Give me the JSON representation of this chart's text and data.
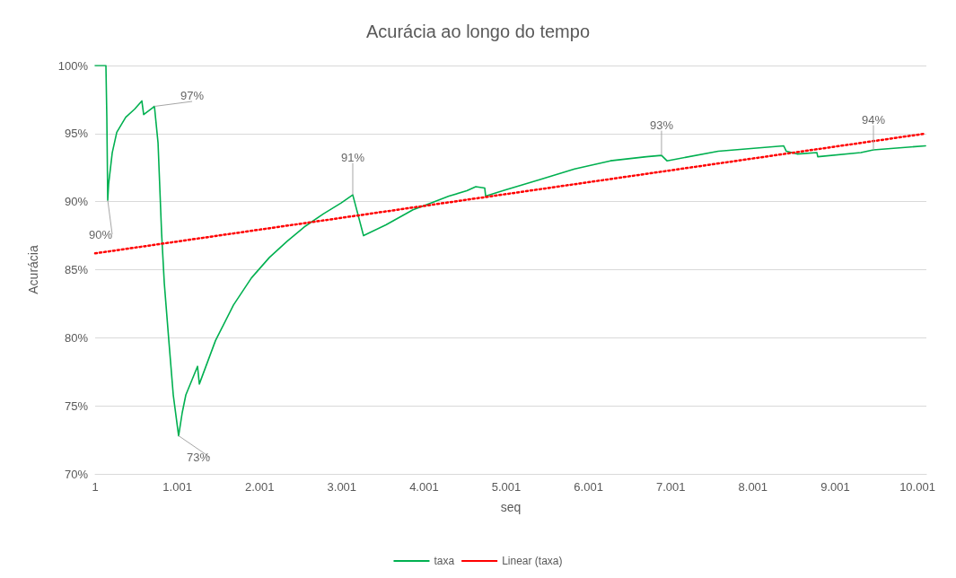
{
  "chart_data": {
    "type": "line",
    "title": "Acurácia ao longo do tempo",
    "xlabel": "seq",
    "ylabel": "Acurácia",
    "xlim": [
      1,
      10110
    ],
    "xticks": [
      {
        "value": 1,
        "label": "1"
      },
      {
        "value": 1001,
        "label": "1.001"
      },
      {
        "value": 2001,
        "label": "2.001"
      },
      {
        "value": 3001,
        "label": "3.001"
      },
      {
        "value": 4001,
        "label": "4.001"
      },
      {
        "value": 5001,
        "label": "5.001"
      },
      {
        "value": 6001,
        "label": "6.001"
      },
      {
        "value": 7001,
        "label": "7.001"
      },
      {
        "value": 8001,
        "label": "8.001"
      },
      {
        "value": 9001,
        "label": "9.001"
      },
      {
        "value": 10001,
        "label": "10.001"
      }
    ],
    "ylim": [
      70,
      100
    ],
    "yticks": [
      {
        "value": 70,
        "label": "70%"
      },
      {
        "value": 75,
        "label": "75%"
      },
      {
        "value": 80,
        "label": "80%"
      },
      {
        "value": 85,
        "label": "85%"
      },
      {
        "value": 90,
        "label": "90%"
      },
      {
        "value": 95,
        "label": "95%"
      },
      {
        "value": 100,
        "label": "100%"
      }
    ],
    "grid": "y",
    "legend": "bottom",
    "marker": "none",
    "series": [
      {
        "name": "taxa",
        "color": "#00b050",
        "line_style": "solid",
        "x": [
          1,
          132,
          143,
          154,
          165,
          209,
          264,
          373,
          482,
          569,
          591,
          700,
          722,
          766,
          809,
          842,
          897,
          951,
          1016,
          1060,
          1104,
          1246,
          1268,
          1465,
          1683,
          1902,
          2120,
          2338,
          2557,
          2775,
          2993,
          3134,
          3265,
          3538,
          3866,
          4084,
          4303,
          4521,
          4630,
          4739,
          4750,
          4958,
          5395,
          5832,
          6268,
          6705,
          6889,
          6955,
          7578,
          8375,
          8407,
          8538,
          8779,
          8789,
          9313,
          9466,
          10100
        ],
        "values": [
          100,
          100,
          96.2,
          90.1,
          91.3,
          93.6,
          95.1,
          96.2,
          96.8,
          97.4,
          96.4,
          96.9,
          97.0,
          94.3,
          87.7,
          84.0,
          79.8,
          75.8,
          72.8,
          74.5,
          75.8,
          77.9,
          76.6,
          79.8,
          82.4,
          84.4,
          85.9,
          87.1,
          88.2,
          89.1,
          89.9,
          90.5,
          87.5,
          88.3,
          89.4,
          89.9,
          90.4,
          90.8,
          91.1,
          91.0,
          90.4,
          90.8,
          91.6,
          92.4,
          93.0,
          93.3,
          93.4,
          93.0,
          93.7,
          94.1,
          93.7,
          93.5,
          93.6,
          93.3,
          93.6,
          93.8,
          94.1
        ]
      },
      {
        "name": "Linear (taxa)",
        "color": "#ff0000",
        "line_style": "dotted",
        "x": [
          1,
          10100
        ],
        "values": [
          86.2,
          95.0
        ]
      }
    ],
    "annotations": [
      {
        "text": "90%",
        "x": 154,
        "y": 90.1
      },
      {
        "text": "97%",
        "x": 722,
        "y": 97.0
      },
      {
        "text": "73%",
        "x": 1016,
        "y": 72.8
      },
      {
        "text": "91%",
        "x": 3134,
        "y": 90.5
      },
      {
        "text": "93%",
        "x": 6889,
        "y": 93.4
      },
      {
        "text": "94%",
        "x": 9466,
        "y": 93.8
      }
    ]
  }
}
